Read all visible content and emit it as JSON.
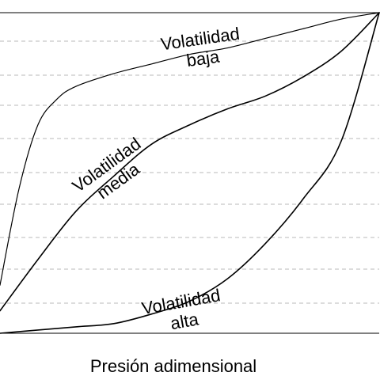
{
  "chart_data": {
    "type": "line",
    "title": "",
    "xlabel": "Presión adimensional",
    "ylabel": "",
    "xlim": [
      0,
      1
    ],
    "ylim": [
      0,
      1
    ],
    "grid": true,
    "series": [
      {
        "name": "Volatilidad baja",
        "color": "#000000",
        "points": [
          [
            0.0,
            0.15
          ],
          [
            0.05,
            0.45
          ],
          [
            0.1,
            0.65
          ],
          [
            0.15,
            0.73
          ],
          [
            0.2,
            0.77
          ],
          [
            0.3,
            0.81
          ],
          [
            0.4,
            0.84
          ],
          [
            0.5,
            0.87
          ],
          [
            0.6,
            0.89
          ],
          [
            0.7,
            0.92
          ],
          [
            0.8,
            0.95
          ],
          [
            0.9,
            0.98
          ],
          [
            1.0,
            1.0
          ]
        ]
      },
      {
        "name": "Volatilidad media",
        "color": "#000000",
        "points": [
          [
            0.0,
            0.07
          ],
          [
            0.1,
            0.23
          ],
          [
            0.2,
            0.38
          ],
          [
            0.3,
            0.49
          ],
          [
            0.4,
            0.59
          ],
          [
            0.5,
            0.65
          ],
          [
            0.6,
            0.7
          ],
          [
            0.7,
            0.74
          ],
          [
            0.8,
            0.8
          ],
          [
            0.9,
            0.88
          ],
          [
            1.0,
            1.0
          ]
        ]
      },
      {
        "name": "Volatilidad alta",
        "color": "#000000",
        "points": [
          [
            0.0,
            0.0
          ],
          [
            0.1,
            0.01
          ],
          [
            0.2,
            0.02
          ],
          [
            0.3,
            0.03
          ],
          [
            0.4,
            0.06
          ],
          [
            0.5,
            0.1
          ],
          [
            0.6,
            0.17
          ],
          [
            0.7,
            0.28
          ],
          [
            0.8,
            0.42
          ],
          [
            0.9,
            0.6
          ],
          [
            1.0,
            1.0
          ]
        ]
      }
    ],
    "labels": [
      {
        "text_lines": [
          "Volatilidad",
          "baja"
        ],
        "series": "Volatilidad baja",
        "anchor": [
          0.53,
          0.9
        ],
        "rotation": -8
      },
      {
        "text_lines": [
          "Volatilidad",
          "media"
        ],
        "series": "Volatilidad media",
        "anchor": [
          0.29,
          0.51
        ],
        "rotation": -36
      },
      {
        "text_lines": [
          "Volatilidad",
          "alta"
        ],
        "series": "Volatilidad alta",
        "anchor": [
          0.48,
          0.08
        ],
        "rotation": -10
      }
    ]
  }
}
